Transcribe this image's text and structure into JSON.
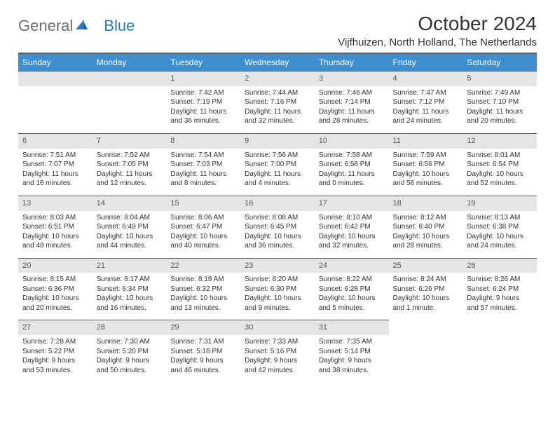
{
  "brand": {
    "part1": "General",
    "part2": "Blue"
  },
  "title": "October 2024",
  "location": "Vijfhuizen, North Holland, The Netherlands",
  "columns": [
    "Sunday",
    "Monday",
    "Tuesday",
    "Wednesday",
    "Thursday",
    "Friday",
    "Saturday"
  ],
  "colors": {
    "header_bg": "#3d8fcf",
    "header_text": "#ffffff",
    "daynum_bg": "#e3e5e7",
    "daynum_text": "#565656",
    "rule": "#5b5b5b",
    "brand_gray": "#6f6f6f",
    "brand_blue": "#2a7ac0",
    "text": "#333333",
    "background": "#ffffff"
  },
  "typography": {
    "title_fontsize": 28,
    "location_fontsize": 15,
    "column_fontsize": 12,
    "daynum_fontsize": 11,
    "body_fontsize": 10,
    "logo_fontsize": 22
  },
  "weeks": [
    [
      null,
      null,
      {
        "n": "1",
        "sunrise": "Sunrise: 7:42 AM",
        "sunset": "Sunset: 7:19 PM",
        "daylight": "Daylight: 11 hours and 36 minutes."
      },
      {
        "n": "2",
        "sunrise": "Sunrise: 7:44 AM",
        "sunset": "Sunset: 7:16 PM",
        "daylight": "Daylight: 11 hours and 32 minutes."
      },
      {
        "n": "3",
        "sunrise": "Sunrise: 7:46 AM",
        "sunset": "Sunset: 7:14 PM",
        "daylight": "Daylight: 11 hours and 28 minutes."
      },
      {
        "n": "4",
        "sunrise": "Sunrise: 7:47 AM",
        "sunset": "Sunset: 7:12 PM",
        "daylight": "Daylight: 11 hours and 24 minutes."
      },
      {
        "n": "5",
        "sunrise": "Sunrise: 7:49 AM",
        "sunset": "Sunset: 7:10 PM",
        "daylight": "Daylight: 11 hours and 20 minutes."
      }
    ],
    [
      {
        "n": "6",
        "sunrise": "Sunrise: 7:51 AM",
        "sunset": "Sunset: 7:07 PM",
        "daylight": "Daylight: 11 hours and 16 minutes."
      },
      {
        "n": "7",
        "sunrise": "Sunrise: 7:52 AM",
        "sunset": "Sunset: 7:05 PM",
        "daylight": "Daylight: 11 hours and 12 minutes."
      },
      {
        "n": "8",
        "sunrise": "Sunrise: 7:54 AM",
        "sunset": "Sunset: 7:03 PM",
        "daylight": "Daylight: 11 hours and 8 minutes."
      },
      {
        "n": "9",
        "sunrise": "Sunrise: 7:56 AM",
        "sunset": "Sunset: 7:00 PM",
        "daylight": "Daylight: 11 hours and 4 minutes."
      },
      {
        "n": "10",
        "sunrise": "Sunrise: 7:58 AM",
        "sunset": "Sunset: 6:58 PM",
        "daylight": "Daylight: 11 hours and 0 minutes."
      },
      {
        "n": "11",
        "sunrise": "Sunrise: 7:59 AM",
        "sunset": "Sunset: 6:56 PM",
        "daylight": "Daylight: 10 hours and 56 minutes."
      },
      {
        "n": "12",
        "sunrise": "Sunrise: 8:01 AM",
        "sunset": "Sunset: 6:54 PM",
        "daylight": "Daylight: 10 hours and 52 minutes."
      }
    ],
    [
      {
        "n": "13",
        "sunrise": "Sunrise: 8:03 AM",
        "sunset": "Sunset: 6:51 PM",
        "daylight": "Daylight: 10 hours and 48 minutes."
      },
      {
        "n": "14",
        "sunrise": "Sunrise: 8:04 AM",
        "sunset": "Sunset: 6:49 PM",
        "daylight": "Daylight: 10 hours and 44 minutes."
      },
      {
        "n": "15",
        "sunrise": "Sunrise: 8:06 AM",
        "sunset": "Sunset: 6:47 PM",
        "daylight": "Daylight: 10 hours and 40 minutes."
      },
      {
        "n": "16",
        "sunrise": "Sunrise: 8:08 AM",
        "sunset": "Sunset: 6:45 PM",
        "daylight": "Daylight: 10 hours and 36 minutes."
      },
      {
        "n": "17",
        "sunrise": "Sunrise: 8:10 AM",
        "sunset": "Sunset: 6:42 PM",
        "daylight": "Daylight: 10 hours and 32 minutes."
      },
      {
        "n": "18",
        "sunrise": "Sunrise: 8:12 AM",
        "sunset": "Sunset: 6:40 PM",
        "daylight": "Daylight: 10 hours and 28 minutes."
      },
      {
        "n": "19",
        "sunrise": "Sunrise: 8:13 AM",
        "sunset": "Sunset: 6:38 PM",
        "daylight": "Daylight: 10 hours and 24 minutes."
      }
    ],
    [
      {
        "n": "20",
        "sunrise": "Sunrise: 8:15 AM",
        "sunset": "Sunset: 6:36 PM",
        "daylight": "Daylight: 10 hours and 20 minutes."
      },
      {
        "n": "21",
        "sunrise": "Sunrise: 8:17 AM",
        "sunset": "Sunset: 6:34 PM",
        "daylight": "Daylight: 10 hours and 16 minutes."
      },
      {
        "n": "22",
        "sunrise": "Sunrise: 8:19 AM",
        "sunset": "Sunset: 6:32 PM",
        "daylight": "Daylight: 10 hours and 13 minutes."
      },
      {
        "n": "23",
        "sunrise": "Sunrise: 8:20 AM",
        "sunset": "Sunset: 6:30 PM",
        "daylight": "Daylight: 10 hours and 9 minutes."
      },
      {
        "n": "24",
        "sunrise": "Sunrise: 8:22 AM",
        "sunset": "Sunset: 6:28 PM",
        "daylight": "Daylight: 10 hours and 5 minutes."
      },
      {
        "n": "25",
        "sunrise": "Sunrise: 8:24 AM",
        "sunset": "Sunset: 6:26 PM",
        "daylight": "Daylight: 10 hours and 1 minute."
      },
      {
        "n": "26",
        "sunrise": "Sunrise: 8:26 AM",
        "sunset": "Sunset: 6:24 PM",
        "daylight": "Daylight: 9 hours and 57 minutes."
      }
    ],
    [
      {
        "n": "27",
        "sunrise": "Sunrise: 7:28 AM",
        "sunset": "Sunset: 5:22 PM",
        "daylight": "Daylight: 9 hours and 53 minutes."
      },
      {
        "n": "28",
        "sunrise": "Sunrise: 7:30 AM",
        "sunset": "Sunset: 5:20 PM",
        "daylight": "Daylight: 9 hours and 50 minutes."
      },
      {
        "n": "29",
        "sunrise": "Sunrise: 7:31 AM",
        "sunset": "Sunset: 5:18 PM",
        "daylight": "Daylight: 9 hours and 46 minutes."
      },
      {
        "n": "30",
        "sunrise": "Sunrise: 7:33 AM",
        "sunset": "Sunset: 5:16 PM",
        "daylight": "Daylight: 9 hours and 42 minutes."
      },
      {
        "n": "31",
        "sunrise": "Sunrise: 7:35 AM",
        "sunset": "Sunset: 5:14 PM",
        "daylight": "Daylight: 9 hours and 38 minutes."
      },
      null,
      null
    ]
  ]
}
